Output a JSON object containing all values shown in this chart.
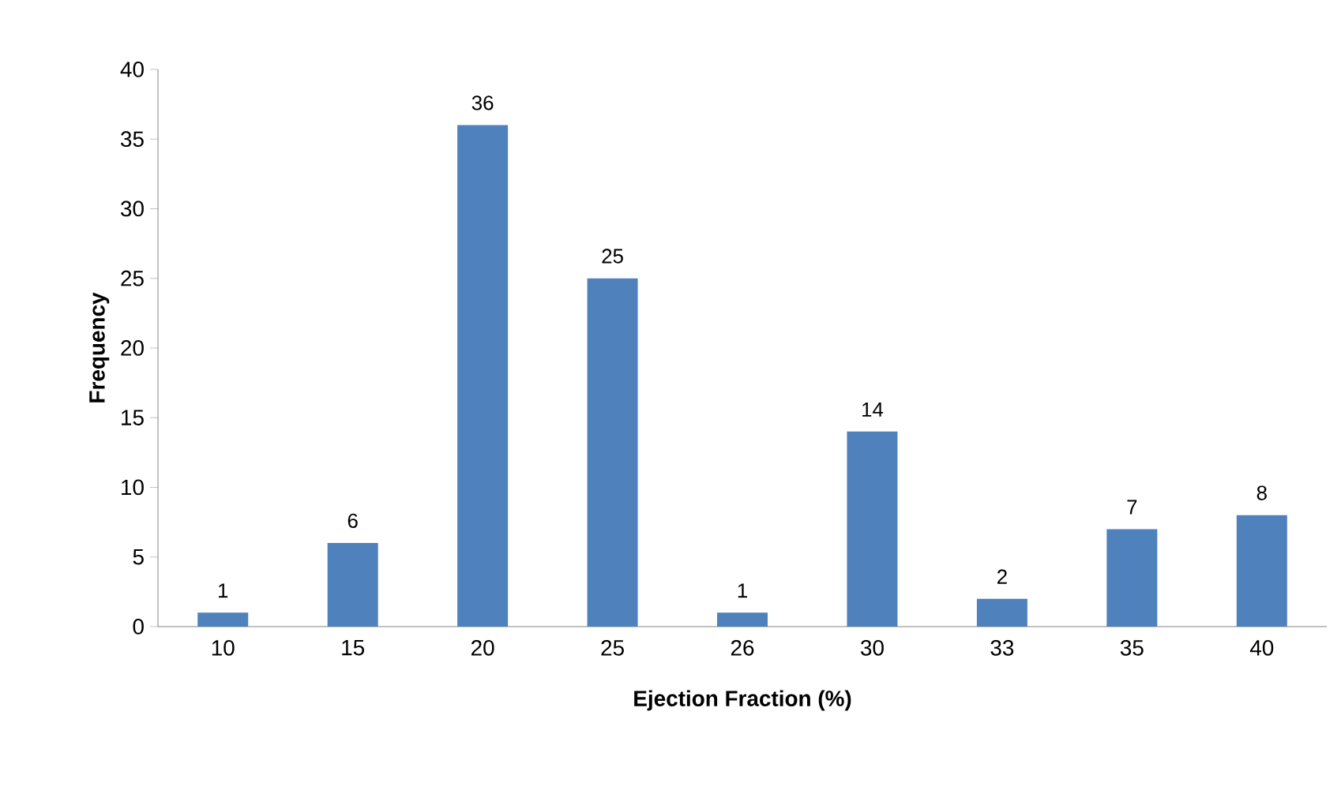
{
  "chart_data": {
    "type": "bar",
    "xlabel": "Ejection Fraction (%)",
    "ylabel": "Frequency",
    "categories": [
      "10",
      "15",
      "20",
      "25",
      "26",
      "30",
      "33",
      "35",
      "40"
    ],
    "values": [
      1,
      6,
      36,
      25,
      1,
      14,
      2,
      7,
      8
    ],
    "color": "#4f81bd",
    "ylim": [
      0,
      40
    ],
    "yticks": [
      0,
      5,
      10,
      15,
      20,
      25,
      30,
      35,
      40
    ],
    "data_labels": true,
    "grid": false
  }
}
